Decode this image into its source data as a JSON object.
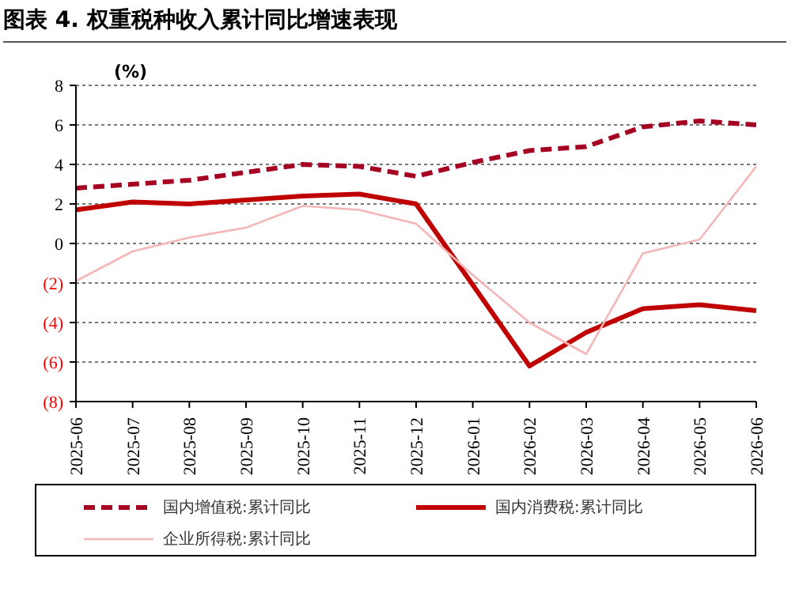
{
  "chart_data": {
    "type": "line",
    "title": "图表 4. 权重税种收入累计同比增速表现",
    "ylabel": "(%)",
    "categories": [
      "2025-06",
      "2025-07",
      "2025-08",
      "2025-09",
      "2025-10",
      "2025-11",
      "2025-12",
      "2026-01",
      "2026-02",
      "2026-03",
      "2026-04",
      "2026-05",
      "2026-06"
    ],
    "series": [
      {
        "name": "国内增值税:累计同比",
        "color": "#a50021",
        "line_style": "dashed",
        "values": [
          2.8,
          3.0,
          3.2,
          3.6,
          4.0,
          3.9,
          3.4,
          4.1,
          4.7,
          4.9,
          5.9,
          6.2,
          6.0
        ]
      },
      {
        "name": "国内消费税:累计同比",
        "color": "#c00000",
        "line_style": "solid",
        "values": [
          1.7,
          2.1,
          2.0,
          2.2,
          2.4,
          2.5,
          2.0,
          -2.1,
          -6.2,
          -4.5,
          -3.3,
          -3.1,
          -3.4
        ]
      },
      {
        "name": "企业所得税:累计同比",
        "color": "#f4b6b6",
        "line_style": "solid",
        "values": [
          -1.9,
          -0.4,
          0.3,
          0.8,
          1.9,
          1.7,
          1.0,
          -1.6,
          -4.0,
          -5.6,
          -0.5,
          0.2,
          3.9
        ]
      }
    ],
    "ylim": [
      -8,
      8
    ],
    "yticks": [
      8,
      6,
      4,
      2,
      0,
      {
        "value": -2,
        "label": "(2)"
      },
      {
        "value": -4,
        "label": "(4)"
      },
      {
        "value": -6,
        "label": "(6)"
      },
      {
        "value": -8,
        "label": "(8)"
      }
    ],
    "grid": "y",
    "legend": "bottom",
    "marker": "none"
  }
}
